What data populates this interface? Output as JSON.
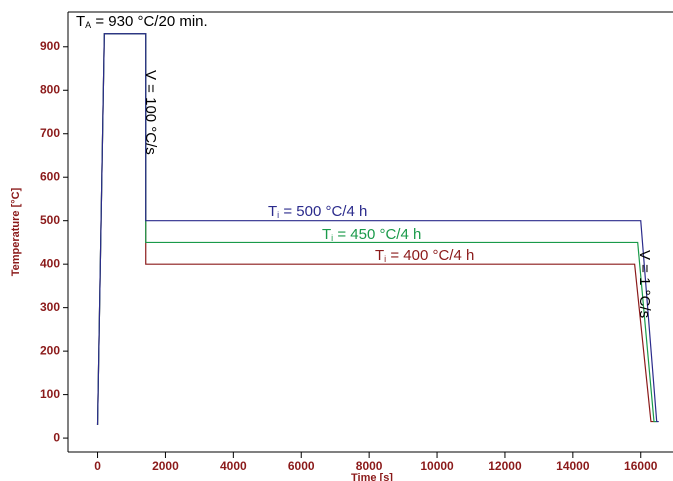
{
  "chart_data": {
    "type": "line",
    "xlabel": "Time [s]",
    "ylabel": "Temperature [°C]",
    "xlim": [
      -870,
      16950
    ],
    "ylim": [
      -32,
      980
    ],
    "xticks": [
      0,
      2000,
      4000,
      6000,
      8000,
      10000,
      12000,
      14000,
      16000
    ],
    "yticks": [
      0,
      100,
      200,
      300,
      400,
      500,
      600,
      700,
      800,
      900
    ],
    "series": [
      {
        "color": "#8b1a1a",
        "x": [
          0,
          200,
          1420,
          1420,
          15820,
          16300,
          16450
        ],
        "values": [
          30,
          930,
          930,
          400,
          400,
          38,
          38
        ]
      },
      {
        "color": "#1a9a4a",
        "x": [
          0,
          200,
          1420,
          1420,
          15910,
          16390,
          16500
        ],
        "values": [
          30,
          930,
          930,
          450,
          450,
          38,
          38
        ]
      },
      {
        "color": "#2b2b8c",
        "x": [
          0,
          200,
          1420,
          1420,
          16000,
          16470,
          16530
        ],
        "values": [
          30,
          930,
          930,
          500,
          500,
          38,
          38
        ]
      }
    ],
    "annotations": [
      {
        "text": "T",
        "sub": "A",
        "rest": " = 930 °C/20 min.",
        "color": "#000000"
      },
      {
        "text": "V = 100 °C/s",
        "color": "#000000"
      },
      {
        "text": "T",
        "sub": "i",
        "rest": " = 500 °C/4 h",
        "color": "#2b2b8c"
      },
      {
        "text": "T",
        "sub": "i",
        "rest": " = 450 °C/4 h",
        "color": "#1a9a4a"
      },
      {
        "text": "T",
        "sub": "i",
        "rest": " = 400 °C/4 h",
        "color": "#8b1a1a"
      },
      {
        "text": "V = 1 °C/s",
        "color": "#000000"
      }
    ]
  }
}
